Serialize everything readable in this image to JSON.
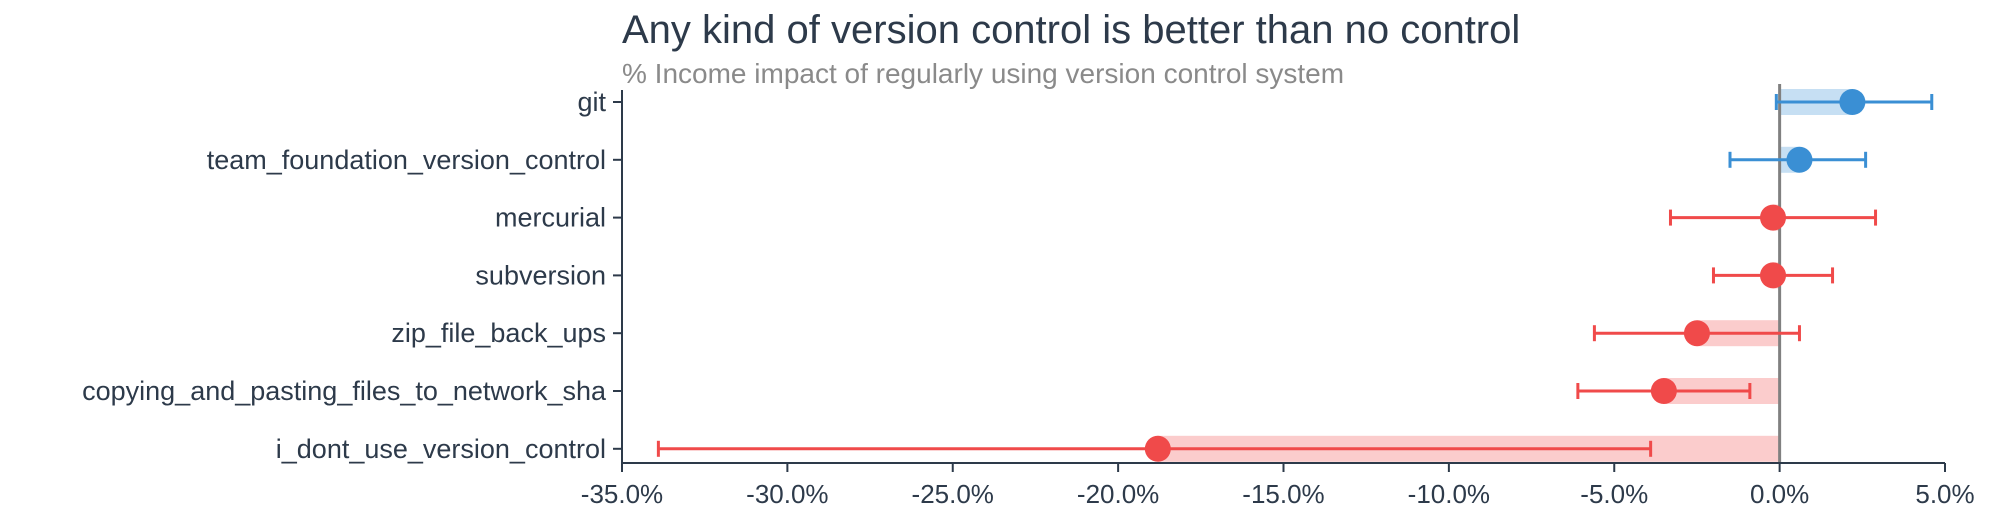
{
  "chart_data": {
    "type": "scatter",
    "title": "Any kind of version control is better than no control",
    "subtitle": "% Income impact of regularly using version control system",
    "xlim": [
      -35.0,
      5.0
    ],
    "xticks": [
      -35,
      -30,
      -25,
      -20,
      -15,
      -10,
      -5,
      0,
      5
    ],
    "xtick_labels": [
      "-35.0%",
      "-30.0%",
      "-25.0%",
      "-20.0%",
      "-15.0%",
      "-10.0%",
      "-5.0%",
      "0.0%",
      "5.0%"
    ],
    "reference_line": 0,
    "colors": {
      "positive": "#3a8fd4",
      "negative": "#f04a4a",
      "positive_band": "#c6dff3",
      "negative_band": "#fbcccc",
      "zero_line": "#808080",
      "axis": "#2d3a4a"
    },
    "categories": [
      "git",
      "team_foundation_version_control",
      "mercurial",
      "subversion",
      "zip_file_back_ups",
      "copying_and_pasting_files_to_network_sha",
      "i_dont_use_version_control"
    ],
    "values": [
      2.2,
      0.6,
      -0.2,
      -0.2,
      -2.5,
      -3.5,
      -18.8
    ],
    "ci_low": [
      -0.1,
      -1.5,
      -3.3,
      -2.0,
      -5.6,
      -6.1,
      -33.9
    ],
    "ci_high": [
      4.6,
      2.6,
      2.9,
      1.6,
      0.6,
      -0.9,
      -3.9
    ]
  }
}
